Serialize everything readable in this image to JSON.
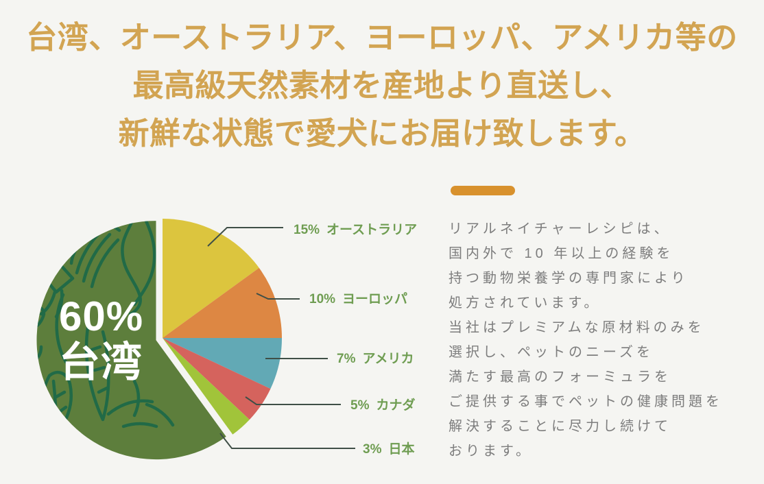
{
  "page": {
    "background": "#f5f5f2"
  },
  "header": {
    "color": "#d2a452",
    "lines": [
      "台湾、オーストラリア、ヨーロッパ、アメリカ等の",
      "最高級天然素材を産地より直送し、",
      "新鮮な状態で愛犬にお届け致します。"
    ]
  },
  "chart_data": {
    "type": "pie",
    "unit": "%",
    "start_angle_deg": 0,
    "clockwise": true,
    "legend_position": "right-callouts",
    "slices": [
      {
        "id": "australia",
        "name": "オーストラリア",
        "pct_label": "15%",
        "value": 15,
        "color": "#dcc53e",
        "exploded": false
      },
      {
        "id": "europe",
        "name": "ヨーロッパ",
        "pct_label": "10%",
        "value": 10,
        "color": "#dd8743",
        "exploded": false
      },
      {
        "id": "america",
        "name": "アメリカ",
        "pct_label": "7%",
        "value": 7,
        "color": "#62a9b5",
        "exploded": false
      },
      {
        "id": "canada",
        "name": "カナダ",
        "pct_label": "5%",
        "value": 5,
        "color": "#d5635d",
        "exploded": false
      },
      {
        "id": "japan",
        "name": "日本",
        "pct_label": "3%",
        "value": 3,
        "color": "#a1c43a",
        "exploded": false
      },
      {
        "id": "taiwan",
        "name": "台湾",
        "pct_label": "60%",
        "value": 60,
        "color": "#5d7e3c",
        "exploded": true
      }
    ]
  },
  "aside": {
    "accent_color": "#d8912d",
    "lines": [
      "リアルネイチャーレシピは、",
      "国内外で 10 年以上の経験を",
      "持つ動物栄養学の専門家により",
      "処方されています。",
      "当社はプレミアムな原材料のみを",
      "選択し、ペットのニーズを",
      "満たす最高のフォーミュラを",
      "ご提供する事でペットの健康問題を",
      "解決することに尽力し続けて",
      "おります。"
    ]
  }
}
